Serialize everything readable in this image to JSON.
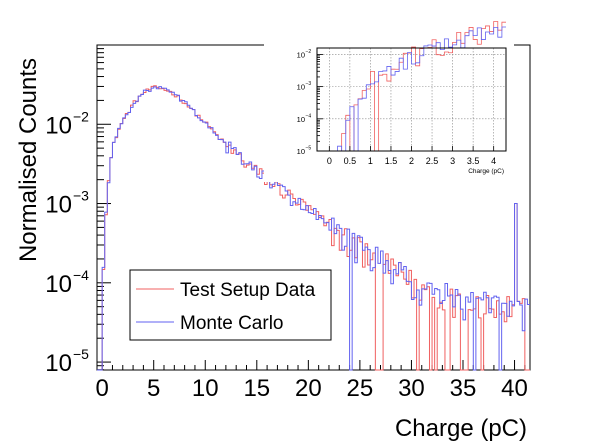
{
  "chart_data": {
    "type": "line",
    "style": "step-histogram",
    "xlabel": "Charge (pC)",
    "ylabel": "Normalised Counts",
    "xlim": [
      -0.5,
      41.5
    ],
    "ylim_log10": [
      -5.1,
      -1.0
    ],
    "y_scale": "log",
    "x_ticks": [
      0,
      5,
      10,
      15,
      20,
      25,
      30,
      35,
      40
    ],
    "y_ticks": [
      {
        "value": -5,
        "label": "10",
        "exp": "−5"
      },
      {
        "value": -4,
        "label": "10",
        "exp": "−4"
      },
      {
        "value": -3,
        "label": "10",
        "exp": "−3"
      },
      {
        "value": -2,
        "label": "10",
        "exp": "−2"
      }
    ],
    "legend_position": "bottom-left",
    "series": [
      {
        "name": "Test Setup Data",
        "color": "#f06060"
      },
      {
        "name": "Monte Carlo",
        "color": "#6262f0"
      }
    ],
    "bin_width": 0.25,
    "x_range": [
      -0.5,
      41.5
    ],
    "shape_points": [
      {
        "x": 0.0,
        "y": 0.0
      },
      {
        "x": 0.2,
        "y": 0.00025
      },
      {
        "x": 0.4,
        "y": 0.0009
      },
      {
        "x": 0.7,
        "y": 0.0025
      },
      {
        "x": 1.0,
        "y": 0.005
      },
      {
        "x": 1.5,
        "y": 0.008
      },
      {
        "x": 2.0,
        "y": 0.011
      },
      {
        "x": 3.0,
        "y": 0.018
      },
      {
        "x": 4.0,
        "y": 0.025
      },
      {
        "x": 5.0,
        "y": 0.029
      },
      {
        "x": 6.0,
        "y": 0.028
      },
      {
        "x": 7.0,
        "y": 0.024
      },
      {
        "x": 8.0,
        "y": 0.019
      },
      {
        "x": 9.0,
        "y": 0.014
      },
      {
        "x": 10.0,
        "y": 0.0105
      },
      {
        "x": 12.0,
        "y": 0.0055
      },
      {
        "x": 14.0,
        "y": 0.0032
      },
      {
        "x": 16.0,
        "y": 0.002
      },
      {
        "x": 18.0,
        "y": 0.0013
      },
      {
        "x": 20.0,
        "y": 0.00085
      },
      {
        "x": 22.0,
        "y": 0.0005
      },
      {
        "x": 24.0,
        "y": 0.00033
      },
      {
        "x": 26.0,
        "y": 0.00022
      },
      {
        "x": 28.0,
        "y": 0.00015
      },
      {
        "x": 30.0,
        "y": 0.0001
      },
      {
        "x": 32.0,
        "y": 8e-05
      },
      {
        "x": 35.0,
        "y": 6e-05
      },
      {
        "x": 38.0,
        "y": 5e-05
      },
      {
        "x": 40.0,
        "y": 4.5e-05
      }
    ],
    "overflow_bin": {
      "x": 40.0,
      "y": 0.001
    },
    "inset": {
      "xlabel": "Charge (pC)",
      "xlim": [
        -0.3,
        4.3
      ],
      "ylim_log10": [
        -5.0,
        -1.8
      ],
      "x_ticks": [
        0,
        0.5,
        1,
        1.5,
        2,
        2.5,
        3,
        3.5,
        4
      ],
      "y_ticks": [
        {
          "value": -5,
          "label": "10",
          "exp": "−5"
        },
        {
          "value": -4,
          "label": "10",
          "exp": "−4"
        },
        {
          "value": -3,
          "label": "10",
          "exp": "−3"
        },
        {
          "value": -2,
          "label": "10",
          "exp": "−2"
        }
      ],
      "grid": true
    }
  }
}
